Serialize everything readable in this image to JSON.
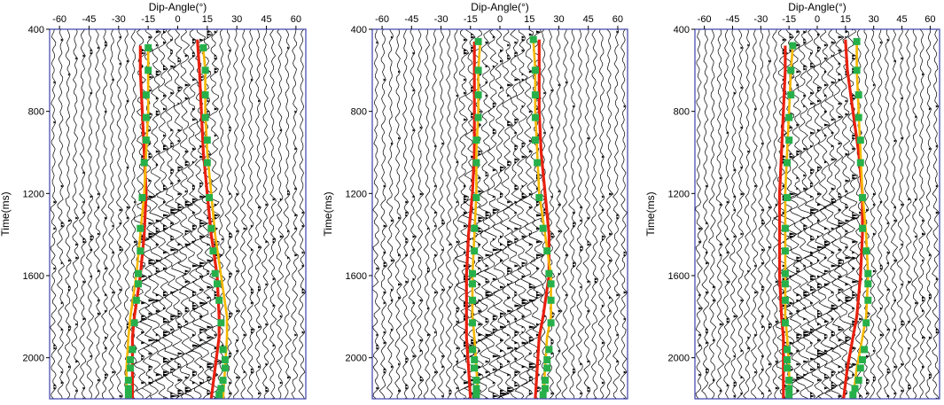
{
  "chart_data": [
    {
      "type": "line",
      "title": "",
      "xlabel": "Dip-Angle(°)",
      "ylabel": "Time(ms)",
      "xlim": [
        -65,
        65
      ],
      "ylim": [
        400,
        2200
      ],
      "y_inverted": true,
      "xticks": [
        -60,
        -45,
        -30,
        -15,
        0,
        15,
        30,
        45,
        60
      ],
      "yticks": [
        400,
        800,
        1200,
        1600,
        2000
      ],
      "background": "seismic wiggle-trace gather",
      "grid": false,
      "legend": "none",
      "series": [
        {
          "color": "#e8200e",
          "kind": "line",
          "x": [
            -19,
            -19,
            -18,
            -17,
            -16,
            -17,
            -19,
            -22,
            -23,
            -23,
            -23
          ],
          "y": [
            480,
            600,
            800,
            1000,
            1200,
            1400,
            1600,
            1800,
            1900,
            2050,
            2200
          ]
        },
        {
          "color": "#e8200e",
          "kind": "line",
          "x": [
            10,
            11,
            12,
            13,
            15,
            17,
            20,
            21,
            21,
            19,
            17
          ],
          "y": [
            450,
            600,
            800,
            1000,
            1200,
            1400,
            1600,
            1800,
            1900,
            2050,
            2200
          ]
        },
        {
          "color": "#f5b800",
          "kind": "line",
          "x": [
            -15,
            -15,
            -15,
            -16,
            -17,
            -19,
            -21,
            -24,
            -25,
            -26,
            -26
          ],
          "y": [
            500,
            600,
            800,
            1000,
            1200,
            1400,
            1600,
            1800,
            1900,
            2050,
            2200
          ]
        },
        {
          "color": "#f5b800",
          "kind": "line",
          "x": [
            13,
            14,
            14,
            15,
            17,
            19,
            22,
            25,
            25,
            24,
            23
          ],
          "y": [
            500,
            600,
            800,
            1000,
            1200,
            1400,
            1600,
            1800,
            1900,
            2050,
            2200
          ]
        },
        {
          "color": "#27b04a",
          "kind": "scatter",
          "x": [
            -15,
            -15,
            -16,
            -16,
            -16,
            -17,
            -18,
            -19,
            -19,
            -20,
            -20,
            -21,
            -22,
            -23,
            -24,
            -24,
            -25,
            -25,
            -25
          ],
          "y": [
            490,
            600,
            720,
            830,
            940,
            1050,
            1220,
            1370,
            1480,
            1590,
            1640,
            1720,
            1830,
            1960,
            2010,
            2050,
            2110,
            2150,
            2180
          ]
        },
        {
          "color": "#27b04a",
          "kind": "scatter",
          "x": [
            13,
            14,
            14,
            14,
            15,
            15,
            16,
            17,
            18,
            19,
            20,
            21,
            22,
            23,
            24,
            24,
            23,
            22,
            21
          ],
          "y": [
            490,
            600,
            720,
            830,
            940,
            1050,
            1220,
            1370,
            1480,
            1590,
            1640,
            1720,
            1830,
            1960,
            2010,
            2050,
            2110,
            2150,
            2180
          ]
        }
      ]
    },
    {
      "type": "line",
      "title": "",
      "xlabel": "Dip-Angle(°)",
      "ylabel": "Time(ms)",
      "xlim": [
        -65,
        65
      ],
      "ylim": [
        400,
        2200
      ],
      "y_inverted": true,
      "xticks": [
        -60,
        -45,
        -30,
        -15,
        0,
        15,
        30,
        45,
        60
      ],
      "yticks": [
        400,
        800,
        1200,
        1600,
        2000
      ],
      "background": "seismic wiggle-trace gather",
      "grid": false,
      "legend": "none",
      "series": [
        {
          "color": "#e8200e",
          "kind": "line",
          "x": [
            -13,
            -13,
            -13,
            -13,
            -14,
            -16,
            -17,
            -17,
            -17,
            -16,
            -15
          ],
          "y": [
            460,
            600,
            800,
            1000,
            1200,
            1400,
            1600,
            1800,
            1900,
            2050,
            2200
          ]
        },
        {
          "color": "#e8200e",
          "kind": "line",
          "x": [
            20,
            20,
            20,
            21,
            23,
            25,
            25,
            22,
            20,
            19,
            18
          ],
          "y": [
            450,
            600,
            800,
            1000,
            1200,
            1400,
            1600,
            1800,
            1900,
            2050,
            2200
          ]
        },
        {
          "color": "#f5b800",
          "kind": "line",
          "x": [
            -10,
            -11,
            -11,
            -12,
            -12,
            -13,
            -14,
            -14,
            -13,
            -12,
            -11
          ],
          "y": [
            460,
            600,
            800,
            1000,
            1200,
            1400,
            1600,
            1800,
            1900,
            2050,
            2200
          ]
        },
        {
          "color": "#f5b800",
          "kind": "line",
          "x": [
            17,
            18,
            18,
            19,
            20,
            23,
            26,
            26,
            24,
            23,
            22
          ],
          "y": [
            450,
            600,
            800,
            1000,
            1200,
            1400,
            1600,
            1800,
            1900,
            2050,
            2200
          ]
        },
        {
          "color": "#27b04a",
          "kind": "scatter",
          "x": [
            -11,
            -11,
            -11,
            -11,
            -12,
            -12,
            -12,
            -13,
            -13,
            -14,
            -14,
            -14,
            -14,
            -14,
            -13,
            -13,
            -12,
            -12,
            -12
          ],
          "y": [
            460,
            600,
            720,
            830,
            940,
            1050,
            1220,
            1370,
            1480,
            1590,
            1640,
            1720,
            1830,
            1960,
            2010,
            2050,
            2110,
            2150,
            2180
          ]
        },
        {
          "color": "#27b04a",
          "kind": "scatter",
          "x": [
            17,
            18,
            18,
            18,
            18,
            19,
            20,
            22,
            24,
            25,
            26,
            26,
            26,
            25,
            24,
            24,
            23,
            23,
            22
          ],
          "y": [
            450,
            600,
            720,
            830,
            940,
            1050,
            1220,
            1370,
            1480,
            1590,
            1640,
            1720,
            1830,
            1960,
            2010,
            2050,
            2110,
            2150,
            2180
          ]
        }
      ]
    },
    {
      "type": "line",
      "title": "",
      "xlabel": "Dip-Angle(°)",
      "ylabel": "Time(ms)",
      "xlim": [
        -65,
        65
      ],
      "ylim": [
        400,
        2200
      ],
      "y_inverted": true,
      "xticks": [
        -60,
        -45,
        -30,
        -15,
        0,
        15,
        30,
        45,
        60
      ],
      "yticks": [
        400,
        800,
        1200,
        1600,
        2000
      ],
      "background": "seismic wiggle-trace gather",
      "grid": false,
      "legend": "none",
      "series": [
        {
          "color": "#e8200e",
          "kind": "line",
          "x": [
            -17,
            -17,
            -18,
            -19,
            -20,
            -20,
            -20,
            -19,
            -18,
            -18,
            -18
          ],
          "y": [
            480,
            600,
            800,
            1000,
            1200,
            1400,
            1600,
            1800,
            1900,
            2050,
            2200
          ]
        },
        {
          "color": "#e8200e",
          "kind": "line",
          "x": [
            15,
            16,
            19,
            22,
            24,
            24,
            23,
            21,
            19,
            16,
            14
          ],
          "y": [
            450,
            600,
            800,
            1000,
            1200,
            1400,
            1600,
            1800,
            1900,
            2050,
            2200
          ]
        },
        {
          "color": "#f5b800",
          "kind": "line",
          "x": [
            -13,
            -14,
            -15,
            -16,
            -17,
            -17,
            -17,
            -17,
            -16,
            -15,
            -15
          ],
          "y": [
            480,
            600,
            800,
            1000,
            1200,
            1400,
            1600,
            1800,
            1900,
            2050,
            2200
          ]
        },
        {
          "color": "#f5b800",
          "kind": "line",
          "x": [
            21,
            21,
            22,
            23,
            24,
            26,
            27,
            26,
            24,
            21,
            19
          ],
          "y": [
            460,
            600,
            800,
            1000,
            1200,
            1400,
            1600,
            1800,
            1900,
            2050,
            2200
          ]
        },
        {
          "color": "#27b04a",
          "kind": "scatter",
          "x": [
            -13,
            -14,
            -14,
            -15,
            -15,
            -16,
            -16,
            -17,
            -17,
            -17,
            -17,
            -17,
            -17,
            -16,
            -16,
            -16,
            -15,
            -15,
            -15
          ],
          "y": [
            480,
            600,
            720,
            830,
            940,
            1050,
            1220,
            1370,
            1480,
            1590,
            1640,
            1720,
            1830,
            1960,
            2010,
            2050,
            2110,
            2150,
            2180
          ]
        },
        {
          "color": "#27b04a",
          "kind": "scatter",
          "x": [
            21,
            21,
            22,
            22,
            23,
            23,
            24,
            24,
            26,
            27,
            27,
            27,
            26,
            25,
            24,
            23,
            22,
            20,
            19
          ],
          "y": [
            460,
            600,
            720,
            830,
            940,
            1050,
            1220,
            1370,
            1480,
            1590,
            1640,
            1720,
            1830,
            1960,
            2010,
            2050,
            2110,
            2150,
            2180
          ]
        }
      ]
    }
  ]
}
